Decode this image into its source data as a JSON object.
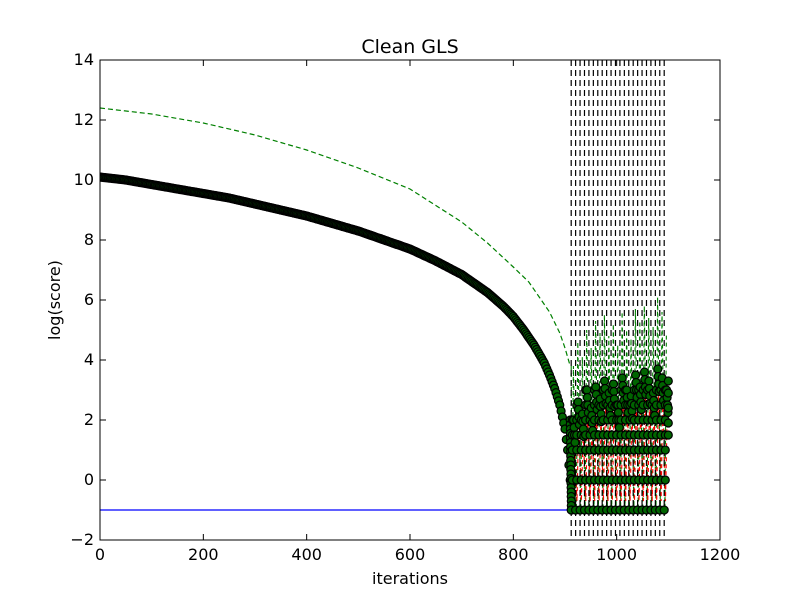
{
  "chart_data": {
    "type": "line",
    "title": "Clean GLS",
    "xlabel": "iterations",
    "ylabel": "log(score)",
    "xlim": [
      0,
      1200
    ],
    "ylim": [
      -2,
      14
    ],
    "xticks": [
      0,
      200,
      400,
      600,
      800,
      1000,
      1200
    ],
    "yticks": [
      -2,
      0,
      2,
      4,
      6,
      8,
      10,
      12,
      14
    ],
    "xtick_labels": [
      "0",
      "200",
      "400",
      "600",
      "800",
      "1000",
      "1200"
    ],
    "ytick_labels": [
      "−2",
      "0",
      "2",
      "4",
      "6",
      "8",
      "10",
      "12",
      "14"
    ],
    "grid": false,
    "legend": "none",
    "colors": {
      "score_markers": "#000000",
      "marker_fill": "#006400",
      "upper_bound": "#008000",
      "baseline": "#0000ff",
      "oscillation": "#ff0000",
      "restart_lines": "#000000"
    },
    "series": [
      {
        "style": "black circle markers",
        "x": [
          0,
          50,
          100,
          150,
          200,
          250,
          300,
          350,
          400,
          450,
          500,
          550,
          600,
          650,
          700,
          750,
          780,
          800,
          820,
          840,
          860,
          870,
          880,
          890,
          895,
          900,
          905,
          910
        ],
        "y": [
          10.1,
          10.0,
          9.85,
          9.7,
          9.55,
          9.4,
          9.2,
          9.0,
          8.8,
          8.55,
          8.3,
          8.0,
          7.7,
          7.3,
          6.85,
          6.25,
          5.8,
          5.45,
          5.0,
          4.5,
          3.9,
          3.5,
          3.05,
          2.5,
          2.1,
          1.7,
          1.0,
          0.0
        ]
      },
      {
        "style": "green dashed",
        "x": [
          0,
          100,
          200,
          300,
          400,
          500,
          600,
          700,
          750,
          800,
          830,
          850,
          870,
          890,
          900,
          910
        ],
        "y": [
          12.4,
          12.2,
          11.9,
          11.5,
          11.0,
          10.4,
          9.7,
          8.6,
          7.9,
          7.1,
          6.6,
          6.1,
          5.6,
          4.9,
          4.4,
          3.8
        ]
      },
      {
        "style": "blue solid",
        "x": [
          0,
          912
        ],
        "y": [
          -1.0,
          -1.0
        ]
      }
    ],
    "restart_region": {
      "x_start": 912,
      "x_end": 1092,
      "restart_count": 22,
      "low_value": -1.0,
      "high_values": [
        2.0,
        2.6,
        2.2,
        3.0,
        2.4,
        3.1,
        2.7,
        3.3,
        2.9,
        3.2,
        2.5,
        3.4,
        3.0,
        2.8,
        3.5,
        3.1,
        3.6,
        3.3,
        2.9,
        3.7,
        3.4,
        3.0
      ],
      "green_high_values": [
        3.8,
        4.6,
        4.1,
        5.0,
        4.4,
        5.3,
        4.9,
        5.5,
        4.8,
        5.2,
        4.5,
        5.6,
        5.0,
        4.7,
        5.7,
        5.3,
        5.8,
        5.4,
        5.1,
        6.1,
        5.6,
        4.9
      ],
      "marker_levels": [
        -1.0,
        0.0,
        1.0,
        1.5,
        2.0,
        2.5,
        3.0
      ]
    }
  }
}
